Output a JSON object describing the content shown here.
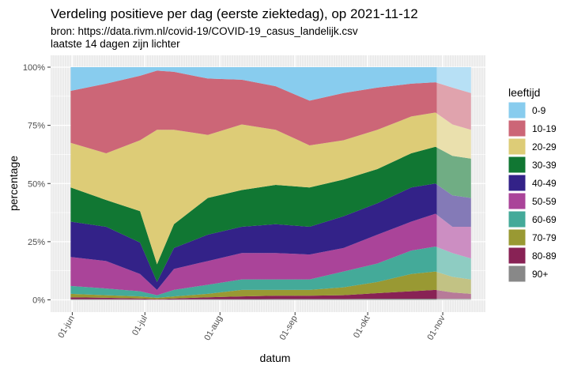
{
  "chart_data": {
    "type": "area",
    "stacked": "percent",
    "title": "Verdeling positieve per dag (eerste ziektedag), op 2021-11-12",
    "subtitle_lines": [
      "bron: https://data.rivm.nl/covid-19/COVID-19_casus_landelijk.csv",
      "laatste 14 dagen zijn lichter"
    ],
    "xlabel": "datum",
    "ylabel": "percentage",
    "x_ticks": [
      {
        "date": "2021-06-01",
        "label": "01-jun"
      },
      {
        "date": "2021-07-01",
        "label": "01-jul"
      },
      {
        "date": "2021-08-01",
        "label": "01-aug"
      },
      {
        "date": "2021-09-01",
        "label": "01-sep"
      },
      {
        "date": "2021-10-01",
        "label": "01-okt"
      },
      {
        "date": "2021-11-01",
        "label": "01-nov"
      }
    ],
    "y_ticks": [
      {
        "value": 0,
        "label": "0%"
      },
      {
        "value": 25,
        "label": "25%"
      },
      {
        "value": 50,
        "label": "50%"
      },
      {
        "value": 75,
        "label": "75%"
      },
      {
        "value": 100,
        "label": "100%"
      }
    ],
    "xlim": [
      "2021-06-01",
      "2021-11-12"
    ],
    "ylim": [
      0,
      100
    ],
    "grid": true,
    "lighter_from": "2021-10-30",
    "legend": {
      "title": "leeftijd",
      "placement": "right"
    },
    "x": [
      "2021-06-01",
      "2021-06-15",
      "2021-06-29",
      "2021-07-06",
      "2021-07-13",
      "2021-07-27",
      "2021-08-10",
      "2021-08-24",
      "2021-09-07",
      "2021-09-21",
      "2021-10-05",
      "2021-10-19",
      "2021-10-29",
      "2021-11-05",
      "2021-11-12"
    ],
    "series": [
      {
        "name": "0-9",
        "color": "#88CCEE",
        "values": [
          10.2,
          7.1,
          3.7,
          1.5,
          2.0,
          4.9,
          5.4,
          8.2,
          14.4,
          11.1,
          8.8,
          7.1,
          6.5,
          8.8,
          11.1
        ]
      },
      {
        "name": "10-19",
        "color": "#CC6677",
        "values": [
          22.3,
          29.9,
          27.7,
          25.4,
          24.9,
          24.2,
          19.2,
          18.7,
          19.2,
          20.3,
          18.1,
          14.1,
          13.0,
          15.8,
          15.8
        ]
      },
      {
        "name": "20-29",
        "color": "#DDCC77",
        "values": [
          19.2,
          20.1,
          30.5,
          57.8,
          40.6,
          27.1,
          28.2,
          23.7,
          18.1,
          16.9,
          16.9,
          15.8,
          14.7,
          13.5,
          12.4
        ]
      },
      {
        "name": "30-39",
        "color": "#117733",
        "values": [
          14.7,
          11.5,
          13.5,
          7.6,
          10.2,
          15.8,
          15.8,
          16.9,
          16.9,
          15.8,
          14.7,
          14.7,
          15.8,
          17.0,
          16.9
        ]
      },
      {
        "name": "40-49",
        "color": "#332288",
        "values": [
          15.2,
          14.7,
          13.5,
          3.4,
          9.0,
          11.3,
          11.3,
          12.4,
          11.9,
          13.6,
          13.5,
          14.7,
          13.0,
          13.5,
          12.4
        ]
      },
      {
        "name": "50-59",
        "color": "#AA4499",
        "values": [
          12.4,
          11.8,
          7.4,
          2.3,
          9.0,
          10.2,
          11.3,
          11.3,
          10.7,
          10.1,
          12.4,
          12.4,
          14.1,
          11.3,
          13.6
        ]
      },
      {
        "name": "60-69",
        "color": "#44AA99",
        "values": [
          3.4,
          2.9,
          2.2,
          1.1,
          2.8,
          3.9,
          4.5,
          4.5,
          4.5,
          6.8,
          7.9,
          10.1,
          10.7,
          10.2,
          9.0
        ]
      },
      {
        "name": "70-79",
        "color": "#999933",
        "values": [
          1.5,
          1.1,
          0.9,
          0.6,
          0.9,
          1.5,
          2.8,
          2.5,
          2.5,
          3.4,
          4.8,
          7.4,
          7.9,
          6.7,
          6.2
        ]
      },
      {
        "name": "80-89",
        "color": "#882255",
        "values": [
          0.8,
          0.6,
          0.4,
          0.2,
          0.4,
          0.8,
          1.2,
          1.4,
          1.4,
          1.6,
          2.4,
          3.2,
          3.8,
          2.7,
          2.1
        ]
      },
      {
        "name": "90+",
        "color": "#888888",
        "values": [
          0.3,
          0.3,
          0.2,
          0.1,
          0.2,
          0.3,
          0.3,
          0.4,
          0.4,
          0.4,
          0.5,
          0.5,
          0.5,
          0.5,
          0.5
        ]
      }
    ]
  }
}
